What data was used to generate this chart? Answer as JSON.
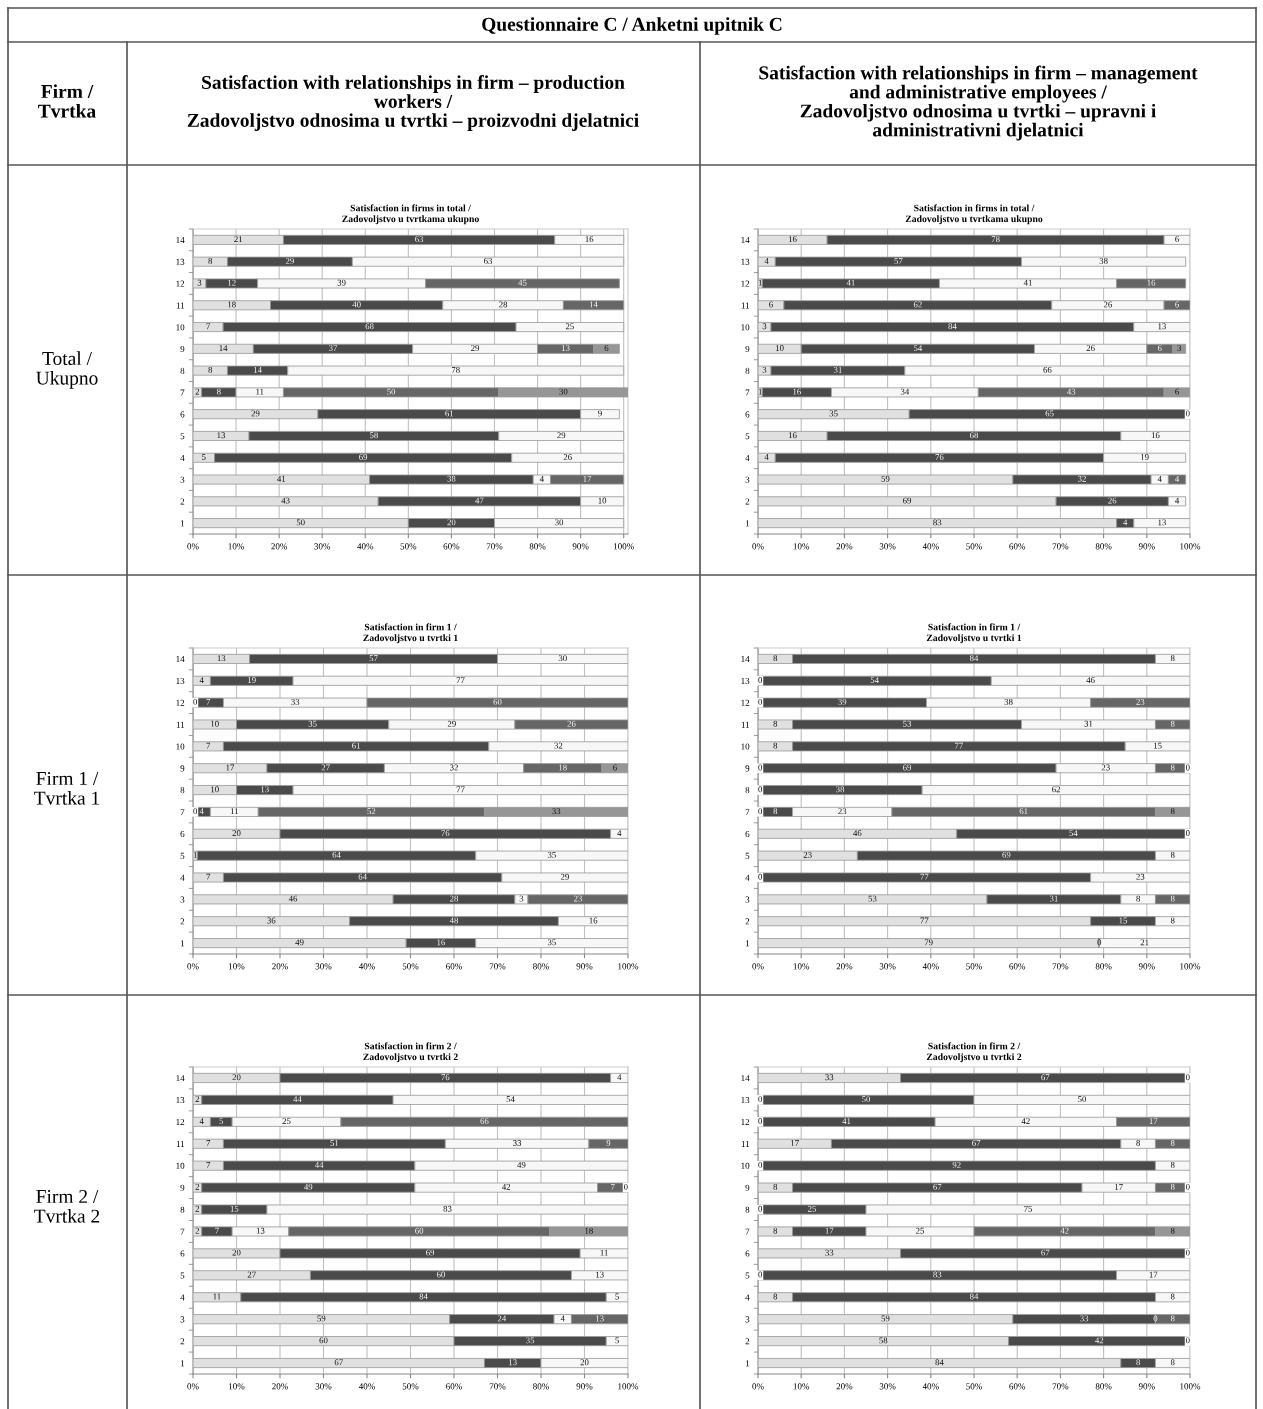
{
  "chart_data": [
    {
      "type": "bar",
      "orientation": "horizontal",
      "stacked": true,
      "title": "Satisfaction in firms in total /\nZadovoljstvo u tvrtkama ukupno",
      "annotations": [
        "Questionnaire C / Anketni upitnik C",
        "Firm /\nTvrtka",
        "Satisfaction with relationships in firm – production\nworkers /\nZadovoljstvo odnosima u tvrtki – proizvodni djelatnici",
        "Total /\nUkupno"
      ],
      "categories": [
        "14",
        "13",
        "12",
        "11",
        "10",
        "9",
        "8",
        "7",
        "6",
        "5",
        "4",
        "3",
        "2",
        "1"
      ],
      "series": [
        {
          "color": "#e0e0e0",
          "values": [
            21,
            8,
            3,
            18,
            7,
            14,
            8,
            2,
            29,
            13,
            5,
            41,
            43,
            50
          ]
        },
        {
          "color": "#4a4a4a",
          "values": [
            63,
            29,
            12,
            40,
            68,
            37,
            14,
            8,
            61,
            58,
            69,
            38,
            47,
            20
          ]
        },
        {
          "color": "#f7f7f7",
          "values": [
            16,
            63,
            39,
            28,
            25,
            29,
            78,
            11,
            9,
            29,
            26,
            4,
            10,
            30
          ]
        },
        {
          "color": "#666666",
          "values": [
            null,
            null,
            45,
            14,
            null,
            13,
            null,
            50,
            null,
            null,
            null,
            17,
            null,
            null
          ]
        },
        {
          "color": "#969696",
          "values": [
            null,
            null,
            null,
            null,
            null,
            6,
            null,
            30,
            null,
            null,
            null,
            null,
            null,
            null
          ]
        }
      ],
      "xlim": [
        0,
        101
      ],
      "xticks": [
        {
          "value": 0,
          "label": "0%"
        },
        {
          "value": 10,
          "label": "10%"
        },
        {
          "value": 20,
          "label": "20%"
        },
        {
          "value": 30,
          "label": "30%"
        },
        {
          "value": 40,
          "label": "40%"
        },
        {
          "value": 50,
          "label": "50%"
        },
        {
          "value": 60,
          "label": "60%"
        },
        {
          "value": 70,
          "label": "70%"
        },
        {
          "value": 80,
          "label": "80%"
        },
        {
          "value": 90,
          "label": "90%"
        },
        {
          "value": 100,
          "label": "100%"
        }
      ],
      "grid": "x",
      "data_labels": true
    },
    {
      "type": "bar",
      "orientation": "horizontal",
      "stacked": true,
      "title": "Satisfaction in firms in total /\nZadovoljstvo u tvrtkama ukupno",
      "annotations": [
        "Satisfaction with relationships in firm – management\nand administrative employees /\nZadovoljstvo odnosima u tvrtki – upravni i\nadministrativni djelatnici"
      ],
      "categories": [
        "14",
        "13",
        "12",
        "11",
        "10",
        "9",
        "8",
        "7",
        "6",
        "5",
        "4",
        "3",
        "2",
        "1"
      ],
      "series": [
        {
          "color": "#e0e0e0",
          "values": [
            16,
            4,
            1,
            6,
            3,
            10,
            3,
            1,
            35,
            16,
            4,
            59,
            69,
            83
          ]
        },
        {
          "color": "#4a4a4a",
          "values": [
            78,
            57,
            41,
            62,
            84,
            54,
            31,
            16,
            65,
            68,
            76,
            32,
            26,
            4
          ]
        },
        {
          "color": "#f7f7f7",
          "values": [
            6,
            38,
            41,
            26,
            13,
            26,
            66,
            34,
            0,
            16,
            19,
            4,
            4,
            13
          ]
        },
        {
          "color": "#666666",
          "values": [
            null,
            null,
            16,
            6,
            null,
            6,
            null,
            43,
            null,
            null,
            null,
            4,
            null,
            null
          ]
        },
        {
          "color": "#969696",
          "values": [
            null,
            null,
            null,
            null,
            null,
            3,
            null,
            6,
            null,
            null,
            null,
            null,
            null,
            null
          ]
        }
      ],
      "xlim": [
        0,
        100
      ],
      "xticks": [
        {
          "value": 0,
          "label": "0%"
        },
        {
          "value": 10,
          "label": "10%"
        },
        {
          "value": 20,
          "label": "20%"
        },
        {
          "value": 30,
          "label": "30%"
        },
        {
          "value": 40,
          "label": "40%"
        },
        {
          "value": 50,
          "label": "50%"
        },
        {
          "value": 60,
          "label": "60%"
        },
        {
          "value": 70,
          "label": "70%"
        },
        {
          "value": 80,
          "label": "80%"
        },
        {
          "value": 90,
          "label": "90%"
        },
        {
          "value": 100,
          "label": "100%"
        }
      ],
      "grid": "x",
      "data_labels": true
    },
    {
      "type": "bar",
      "orientation": "horizontal",
      "stacked": true,
      "title": "Satisfaction in firm 1 /\nZadovoljstvo u tvrtki 1",
      "annotations": [
        "Firm 1 /\nTvrtka 1"
      ],
      "categories": [
        "14",
        "13",
        "12",
        "11",
        "10",
        "9",
        "8",
        "7",
        "6",
        "5",
        "4",
        "3",
        "2",
        "1"
      ],
      "series": [
        {
          "color": "#e0e0e0",
          "values": [
            13,
            4,
            0,
            10,
            7,
            17,
            10,
            0,
            20,
            1,
            7,
            46,
            36,
            49
          ]
        },
        {
          "color": "#4a4a4a",
          "values": [
            57,
            19,
            7,
            35,
            61,
            27,
            13,
            4,
            76,
            64,
            64,
            28,
            48,
            16
          ]
        },
        {
          "color": "#f7f7f7",
          "values": [
            30,
            77,
            33,
            29,
            32,
            32,
            77,
            11,
            4,
            35,
            29,
            3,
            16,
            35
          ]
        },
        {
          "color": "#666666",
          "values": [
            null,
            null,
            60,
            26,
            null,
            18,
            null,
            52,
            null,
            null,
            null,
            23,
            null,
            null
          ]
        },
        {
          "color": "#969696",
          "values": [
            null,
            null,
            null,
            null,
            null,
            6,
            null,
            33,
            null,
            null,
            null,
            null,
            null,
            null
          ]
        }
      ],
      "xlim": [
        0,
        100
      ],
      "xticks": [
        {
          "value": 0,
          "label": "0%"
        },
        {
          "value": 10,
          "label": "10%"
        },
        {
          "value": 20,
          "label": "20%"
        },
        {
          "value": 30,
          "label": "30%"
        },
        {
          "value": 40,
          "label": "40%"
        },
        {
          "value": 50,
          "label": "50%"
        },
        {
          "value": 60,
          "label": "60%"
        },
        {
          "value": 70,
          "label": "70%"
        },
        {
          "value": 80,
          "label": "80%"
        },
        {
          "value": 90,
          "label": "90%"
        },
        {
          "value": 100,
          "label": "100%"
        }
      ],
      "grid": "x",
      "data_labels": true
    },
    {
      "type": "bar",
      "orientation": "horizontal",
      "stacked": true,
      "title": "Satisfaction in firm 1 /\nZadovoljstvo u tvrtki 1",
      "categories": [
        "14",
        "13",
        "12",
        "11",
        "10",
        "9",
        "8",
        "7",
        "6",
        "5",
        "4",
        "3",
        "2",
        "1"
      ],
      "series": [
        {
          "color": "#e0e0e0",
          "values": [
            8,
            0,
            0,
            8,
            8,
            0,
            0,
            0,
            46,
            23,
            0,
            53,
            77,
            79
          ]
        },
        {
          "color": "#4a4a4a",
          "values": [
            84,
            54,
            39,
            53,
            77,
            69,
            38,
            8,
            54,
            69,
            77,
            31,
            15,
            0
          ]
        },
        {
          "color": "#f7f7f7",
          "values": [
            8,
            46,
            38,
            31,
            15,
            23,
            62,
            23,
            0,
            8,
            23,
            8,
            8,
            21
          ]
        },
        {
          "color": "#666666",
          "values": [
            null,
            null,
            23,
            8,
            null,
            8,
            null,
            61,
            null,
            null,
            null,
            8,
            null,
            null
          ]
        },
        {
          "color": "#969696",
          "values": [
            null,
            null,
            null,
            null,
            null,
            0,
            null,
            8,
            null,
            null,
            null,
            null,
            null,
            null
          ]
        }
      ],
      "xlim": [
        0,
        100
      ],
      "xticks": [
        {
          "value": 0,
          "label": "0%"
        },
        {
          "value": 10,
          "label": "10%"
        },
        {
          "value": 20,
          "label": "20%"
        },
        {
          "value": 30,
          "label": "30%"
        },
        {
          "value": 40,
          "label": "40%"
        },
        {
          "value": 50,
          "label": "50%"
        },
        {
          "value": 60,
          "label": "60%"
        },
        {
          "value": 70,
          "label": "70%"
        },
        {
          "value": 80,
          "label": "80%"
        },
        {
          "value": 90,
          "label": "90%"
        },
        {
          "value": 100,
          "label": "100%"
        }
      ],
      "grid": "x",
      "data_labels": true
    },
    {
      "type": "bar",
      "orientation": "horizontal",
      "stacked": true,
      "title": "Satisfaction in firm 2 /\nZadovoljstvo u tvrtki 2",
      "annotations": [
        "Firm 2 /\nTvrtka 2"
      ],
      "categories": [
        "14",
        "13",
        "12",
        "11",
        "10",
        "9",
        "8",
        "7",
        "6",
        "5",
        "4",
        "3",
        "2",
        "1"
      ],
      "series": [
        {
          "color": "#e0e0e0",
          "values": [
            20,
            2,
            4,
            7,
            7,
            2,
            2,
            2,
            20,
            27,
            11,
            59,
            60,
            67
          ]
        },
        {
          "color": "#4a4a4a",
          "values": [
            76,
            44,
            5,
            51,
            44,
            49,
            15,
            7,
            69,
            60,
            84,
            24,
            35,
            13
          ]
        },
        {
          "color": "#f7f7f7",
          "values": [
            4,
            54,
            25,
            33,
            49,
            42,
            83,
            13,
            11,
            13,
            5,
            4,
            5,
            20
          ]
        },
        {
          "color": "#666666",
          "values": [
            null,
            null,
            66,
            9,
            null,
            7,
            null,
            60,
            null,
            null,
            null,
            13,
            null,
            null
          ]
        },
        {
          "color": "#969696",
          "values": [
            null,
            null,
            null,
            null,
            null,
            0,
            null,
            18,
            null,
            null,
            null,
            null,
            null,
            null
          ]
        }
      ],
      "xlim": [
        0,
        100
      ],
      "xticks": [
        {
          "value": 0,
          "label": "0%"
        },
        {
          "value": 10,
          "label": "10%"
        },
        {
          "value": 20,
          "label": "20%"
        },
        {
          "value": 30,
          "label": "30%"
        },
        {
          "value": 40,
          "label": "40%"
        },
        {
          "value": 50,
          "label": "50%"
        },
        {
          "value": 60,
          "label": "60%"
        },
        {
          "value": 70,
          "label": "70%"
        },
        {
          "value": 80,
          "label": "80%"
        },
        {
          "value": 90,
          "label": "90%"
        },
        {
          "value": 100,
          "label": "100%"
        }
      ],
      "grid": "x",
      "data_labels": true
    },
    {
      "type": "bar",
      "orientation": "horizontal",
      "stacked": true,
      "title": "Satisfaction in firm 2 /\nZadovoljstvo u tvrtki 2",
      "categories": [
        "14",
        "13",
        "12",
        "11",
        "10",
        "9",
        "8",
        "7",
        "6",
        "5",
        "4",
        "3",
        "2",
        "1"
      ],
      "series": [
        {
          "color": "#e0e0e0",
          "values": [
            33,
            0,
            0,
            17,
            0,
            8,
            0,
            8,
            33,
            0,
            8,
            59,
            58,
            84
          ]
        },
        {
          "color": "#4a4a4a",
          "values": [
            67,
            50,
            41,
            67,
            92,
            67,
            25,
            17,
            67,
            83,
            84,
            33,
            42,
            8
          ]
        },
        {
          "color": "#f7f7f7",
          "values": [
            0,
            50,
            42,
            8,
            8,
            17,
            75,
            25,
            0,
            17,
            8,
            0,
            0,
            8
          ]
        },
        {
          "color": "#666666",
          "values": [
            null,
            null,
            17,
            8,
            null,
            8,
            null,
            42,
            null,
            null,
            null,
            8,
            null,
            null
          ]
        },
        {
          "color": "#969696",
          "values": [
            null,
            null,
            null,
            null,
            null,
            0,
            null,
            8,
            null,
            null,
            null,
            null,
            null,
            null
          ]
        }
      ],
      "xlim": [
        0,
        100
      ],
      "xticks": [
        {
          "value": 0,
          "label": "0%"
        },
        {
          "value": 10,
          "label": "10%"
        },
        {
          "value": 20,
          "label": "20%"
        },
        {
          "value": 30,
          "label": "30%"
        },
        {
          "value": 40,
          "label": "40%"
        },
        {
          "value": 50,
          "label": "50%"
        },
        {
          "value": 60,
          "label": "60%"
        },
        {
          "value": 70,
          "label": "70%"
        },
        {
          "value": 80,
          "label": "80%"
        },
        {
          "value": 90,
          "label": "90%"
        },
        {
          "value": 100,
          "label": "100%"
        }
      ],
      "grid": "x",
      "data_labels": true
    }
  ]
}
